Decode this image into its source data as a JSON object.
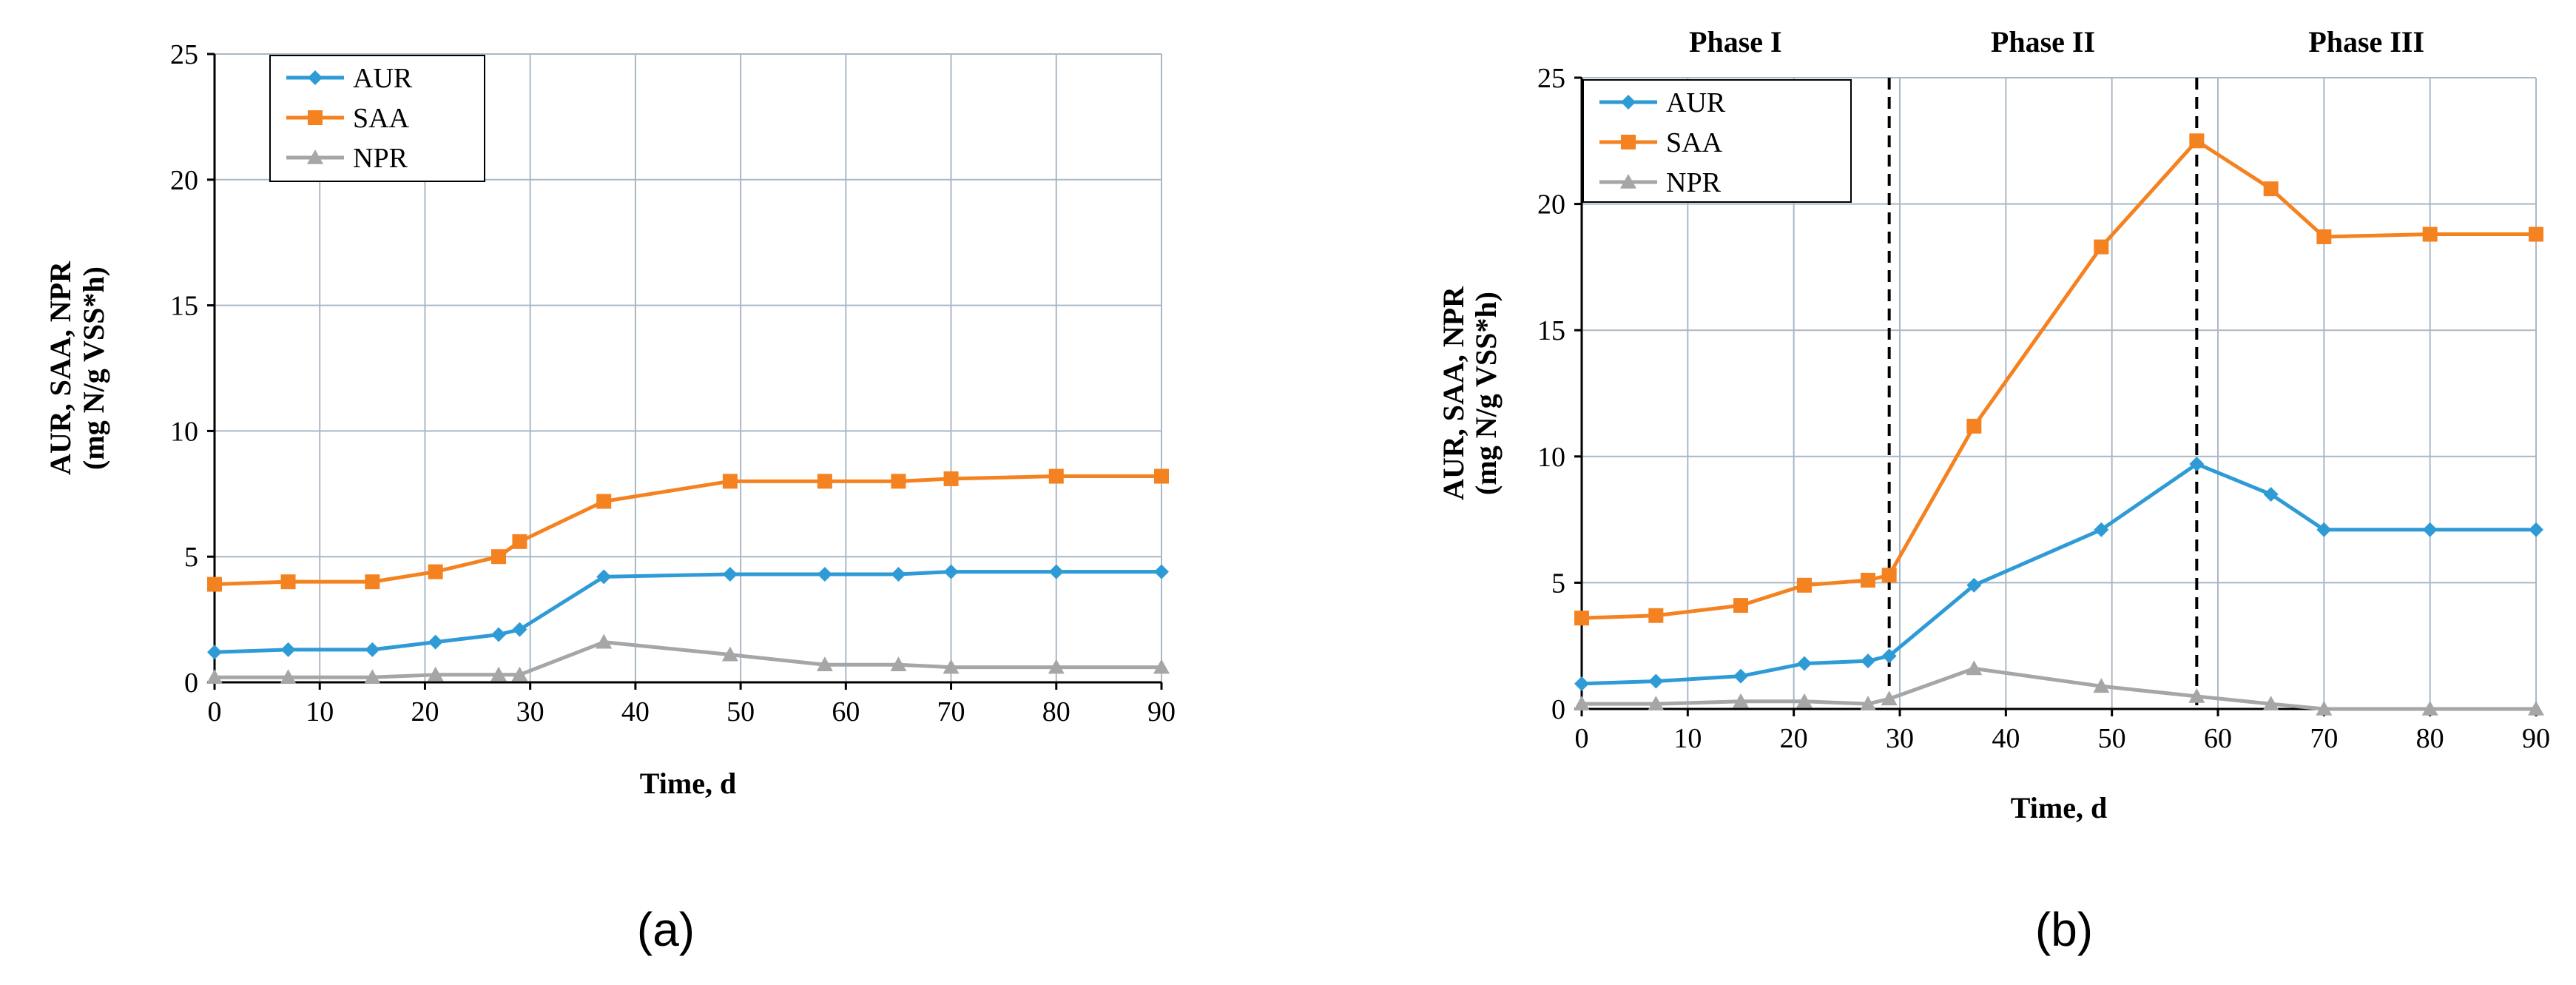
{
  "figure": {
    "caption_a": "(a)",
    "caption_b": "(b)"
  },
  "colors": {
    "AUR": "#2e9bd6",
    "SAA": "#f58220",
    "NPR": "#a6a6a6",
    "grid": "#a9b8c6"
  },
  "chart_data": [
    {
      "type": "line",
      "id": "a",
      "xlabel": "Time, d",
      "ylabel_line1": "AUR, SAA, NPR",
      "ylabel_line2": "(mg N/g VSS*h)",
      "xlim": [
        0,
        90
      ],
      "ylim": [
        0,
        25
      ],
      "xticks": [
        0,
        10,
        20,
        30,
        40,
        50,
        60,
        70,
        80,
        90
      ],
      "yticks": [
        0,
        5,
        10,
        15,
        20,
        25
      ],
      "grid": true,
      "legend": "top-left",
      "x": [
        0,
        7,
        15,
        21,
        27,
        29,
        37,
        49,
        58,
        65,
        70,
        80,
        90
      ],
      "series": [
        {
          "name": "AUR",
          "marker": "diamond",
          "values": [
            1.2,
            1.3,
            1.3,
            1.6,
            1.9,
            2.1,
            4.2,
            4.3,
            4.3,
            4.3,
            4.4,
            4.4,
            4.4
          ]
        },
        {
          "name": "SAA",
          "marker": "square",
          "values": [
            3.9,
            4.0,
            4.0,
            4.4,
            5.0,
            5.6,
            7.2,
            8.0,
            8.0,
            8.0,
            8.1,
            8.2,
            8.2
          ]
        },
        {
          "name": "NPR",
          "marker": "triangle",
          "values": [
            0.2,
            0.2,
            0.2,
            0.3,
            0.3,
            0.3,
            1.6,
            1.1,
            0.7,
            0.7,
            0.6,
            0.6,
            0.6
          ]
        }
      ]
    },
    {
      "type": "line",
      "id": "b",
      "xlabel": "Time, d",
      "ylabel_line1": "AUR, SAA, NPR",
      "ylabel_line2": "(mg N/g VSS*h)",
      "xlim": [
        0,
        90
      ],
      "ylim": [
        0,
        25
      ],
      "xticks": [
        0,
        10,
        20,
        30,
        40,
        50,
        60,
        70,
        80,
        90
      ],
      "yticks": [
        0,
        5,
        10,
        15,
        20,
        25
      ],
      "grid": true,
      "legend": "top-left",
      "phases": [
        "Phase I",
        "Phase II",
        "Phase III"
      ],
      "phase_boundaries": [
        29,
        58
      ],
      "x": [
        0,
        7,
        15,
        21,
        27,
        29,
        37,
        49,
        58,
        65,
        70,
        80,
        90
      ],
      "series": [
        {
          "name": "AUR",
          "marker": "diamond",
          "values": [
            1.0,
            1.1,
            1.3,
            1.8,
            1.9,
            2.1,
            4.9,
            7.1,
            9.7,
            8.5,
            7.1,
            7.1,
            7.1
          ]
        },
        {
          "name": "SAA",
          "marker": "square",
          "values": [
            3.6,
            3.7,
            4.1,
            4.9,
            5.1,
            5.3,
            11.2,
            18.3,
            22.5,
            20.6,
            18.7,
            18.8,
            18.8
          ]
        },
        {
          "name": "NPR",
          "marker": "triangle",
          "values": [
            0.2,
            0.2,
            0.3,
            0.3,
            0.2,
            0.4,
            1.6,
            0.9,
            0.5,
            0.2,
            0.0,
            0.0,
            0.0
          ]
        }
      ]
    }
  ]
}
